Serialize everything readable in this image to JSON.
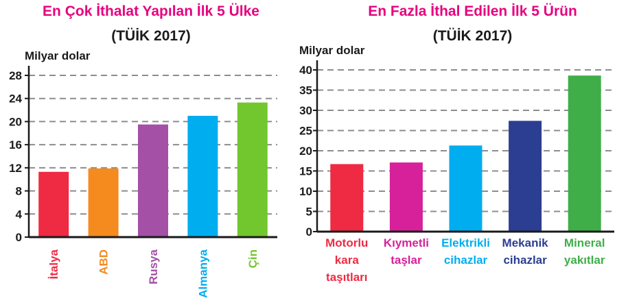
{
  "chart_data": [
    {
      "type": "bar",
      "title": "En Çok İthalat Yapılan İlk 5 Ülke",
      "subtitle": "(TÜİK 2017)",
      "ylabel": "Milyar dolar",
      "ylim": [
        0,
        28
      ],
      "yticks": [
        "0",
        "4",
        "8",
        "12",
        "16",
        "20",
        "24",
        "28"
      ],
      "grid": "dashed horizontal",
      "categories": [
        "İtalya",
        "ABD",
        "Rusya",
        "Almanya",
        "Çin"
      ],
      "values": [
        11.3,
        11.9,
        19.5,
        21.0,
        23.3
      ],
      "colors": [
        "#ef2a43",
        "#f58a1f",
        "#a450a7",
        "#00aeef",
        "#72c72e"
      ]
    },
    {
      "type": "bar",
      "title": "En Fazla İthal Edilen İlk 5 Ürün",
      "subtitle": "(TÜİK 2017)",
      "ylabel": "Milyar dolar",
      "ylim": [
        0,
        40
      ],
      "yticks": [
        "0",
        "5",
        "10",
        "15",
        "20",
        "25",
        "30",
        "35",
        "40"
      ],
      "grid": "dashed horizontal",
      "categories": [
        [
          "Motorlu",
          "kara",
          "taşıtları"
        ],
        [
          "Kıymetli",
          "taşlar"
        ],
        [
          "Elektrikli",
          "cihazlar"
        ],
        [
          "Mekanik",
          "cihazlar"
        ],
        [
          "Mineral",
          "yakıtlar"
        ]
      ],
      "values": [
        16.7,
        17.1,
        21.3,
        27.4,
        38.6
      ],
      "colors": [
        "#ef2a43",
        "#d6219a",
        "#00aeef",
        "#2b3e91",
        "#3fae49"
      ]
    }
  ]
}
